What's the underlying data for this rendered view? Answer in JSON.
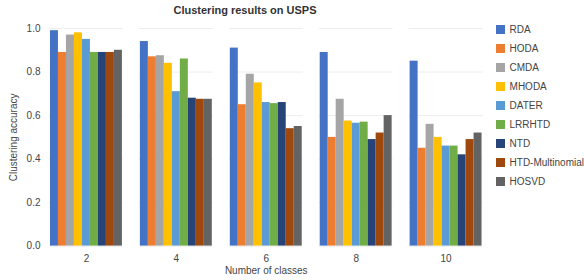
{
  "chart_data": {
    "type": "bar",
    "title": "Clustering results on USPS",
    "x_label": "Number of classes",
    "y_label": "Clustering accuracy",
    "categories": [
      "2",
      "4",
      "6",
      "8",
      "10"
    ],
    "series": [
      {
        "name": "RDA",
        "color": "#4472c4",
        "values": [
          0.99,
          0.94,
          0.91,
          0.89,
          0.85
        ]
      },
      {
        "name": "HODA",
        "color": "#ed7d31",
        "values": [
          0.89,
          0.87,
          0.65,
          0.5,
          0.45
        ]
      },
      {
        "name": "CMDA",
        "color": "#a5a5a5",
        "values": [
          0.97,
          0.875,
          0.79,
          0.675,
          0.56
        ]
      },
      {
        "name": "MHODA",
        "color": "#ffc000",
        "values": [
          0.98,
          0.84,
          0.75,
          0.575,
          0.5
        ]
      },
      {
        "name": "DATER",
        "color": "#5b9bd5",
        "values": [
          0.95,
          0.71,
          0.66,
          0.565,
          0.46
        ]
      },
      {
        "name": "LRRHTD",
        "color": "#70ad47",
        "values": [
          0.89,
          0.86,
          0.655,
          0.57,
          0.46
        ]
      },
      {
        "name": "NTD",
        "color": "#264478",
        "values": [
          0.89,
          0.68,
          0.66,
          0.49,
          0.42
        ]
      },
      {
        "name": "HTD-Multinomial",
        "color": "#9e480e",
        "values": [
          0.89,
          0.675,
          0.54,
          0.52,
          0.49
        ]
      },
      {
        "name": "HOSVD",
        "color": "#636363",
        "values": [
          0.9,
          0.675,
          0.55,
          0.6,
          0.52
        ]
      }
    ],
    "ylim": [
      0,
      1
    ],
    "yticks": [
      {
        "value": 0,
        "label": "0.0"
      },
      0.2,
      0.4,
      0.6,
      0.8,
      {
        "value": 1,
        "label": "1.0"
      }
    ],
    "grid": true,
    "legend": "right"
  }
}
